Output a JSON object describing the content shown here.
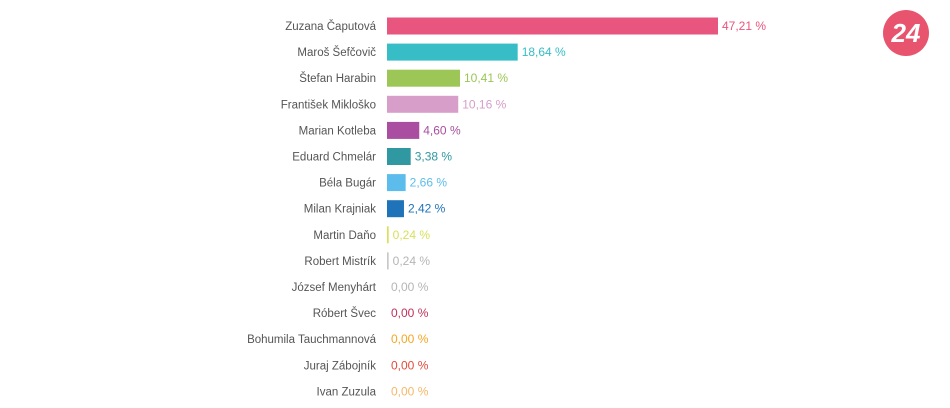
{
  "logo": {
    "text": "24",
    "color": "#e8536e"
  },
  "chart_data": {
    "type": "bar",
    "orientation": "horizontal",
    "value_suffix": " %",
    "xlim": [
      0,
      47.21
    ],
    "grid": false,
    "legend": "none",
    "categories": [
      "Zuzana Čaputová",
      "Maroš Šefčovič",
      "Štefan Harabin",
      "František Mikloško",
      "Marian Kotleba",
      "Eduard Chmelár",
      "Béla Bugár",
      "Milan Krajniak",
      "Martin Daňo",
      "Robert Mistrík",
      "József Menyhárt",
      "Róbert Švec",
      "Bohumila Tauchmannová",
      "Juraj Zábojník",
      "Ivan Zuzula"
    ],
    "values": [
      47.21,
      18.64,
      10.41,
      10.16,
      4.6,
      3.38,
      2.66,
      2.42,
      0.24,
      0.24,
      0.0,
      0.0,
      0.0,
      0.0,
      0.0
    ],
    "value_labels": [
      "47,21 %",
      "18,64 %",
      "10,41 %",
      "10,16 %",
      "4,60 %",
      "3,38 %",
      "2,66 %",
      "2,42 %",
      "0,24 %",
      "0,24 %",
      "0,00 %",
      "0,00 %",
      "0,00 %",
      "0,00 %",
      "0,00 %"
    ],
    "colors": [
      "#e8557e",
      "#36bdc6",
      "#9cc655",
      "#d79ec9",
      "#a94ea0",
      "#2f98a0",
      "#5cbdec",
      "#1f73b8",
      "#d8e05a",
      "#c8c8c8",
      "#c8c8c8",
      "#c0305a",
      "#f5a623",
      "#e24b3b",
      "#f5b86a"
    ]
  }
}
